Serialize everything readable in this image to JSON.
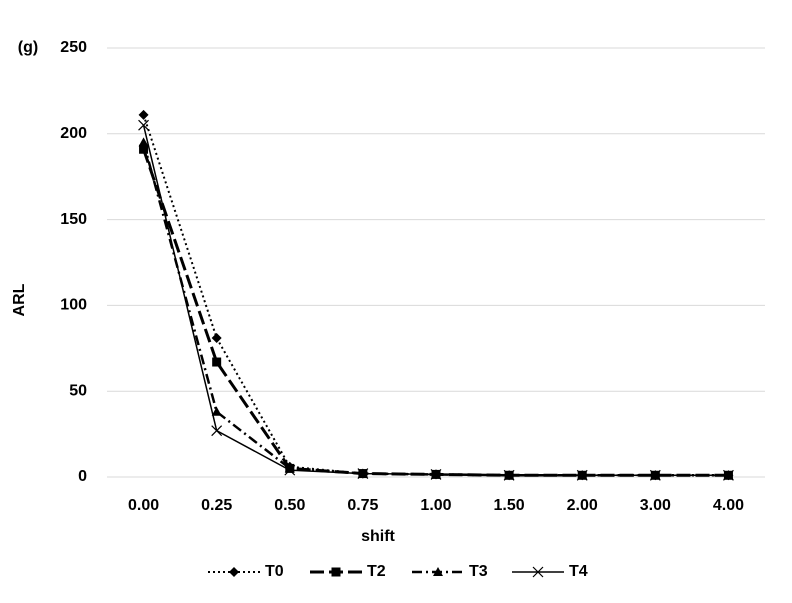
{
  "chart_data": {
    "type": "line",
    "panel_label": "(g)",
    "x_label": "shift",
    "y_label": "ARL",
    "categories": [
      "0.00",
      "0.25",
      "0.50",
      "0.75",
      "1.00",
      "1.50",
      "2.00",
      "3.00",
      "4.00"
    ],
    "series": [
      {
        "name": "T0",
        "color": "#000000",
        "dash": "dotted",
        "marker": "diamond",
        "values": [
          211,
          81,
          6,
          2,
          1.5,
          1,
          1,
          1,
          1
        ]
      },
      {
        "name": "T2",
        "color": "#000000",
        "dash": "long-dash",
        "marker": "square",
        "values": [
          191,
          67,
          5,
          2,
          1.5,
          1,
          1,
          1,
          1
        ]
      },
      {
        "name": "T3",
        "color": "#000000",
        "dash": "dash-dot",
        "marker": "triangle",
        "values": [
          195,
          38,
          5,
          2,
          1.5,
          1,
          1,
          1,
          1
        ]
      },
      {
        "name": "T4",
        "color": "#000000",
        "dash": "solid",
        "marker": "x",
        "values": [
          205,
          27,
          4,
          2,
          1.5,
          1,
          1,
          1,
          1
        ]
      }
    ],
    "ylim": [
      0,
      250
    ],
    "yticks": [
      0,
      50,
      100,
      150,
      200,
      250
    ],
    "grid": true,
    "legend": "bottom"
  }
}
